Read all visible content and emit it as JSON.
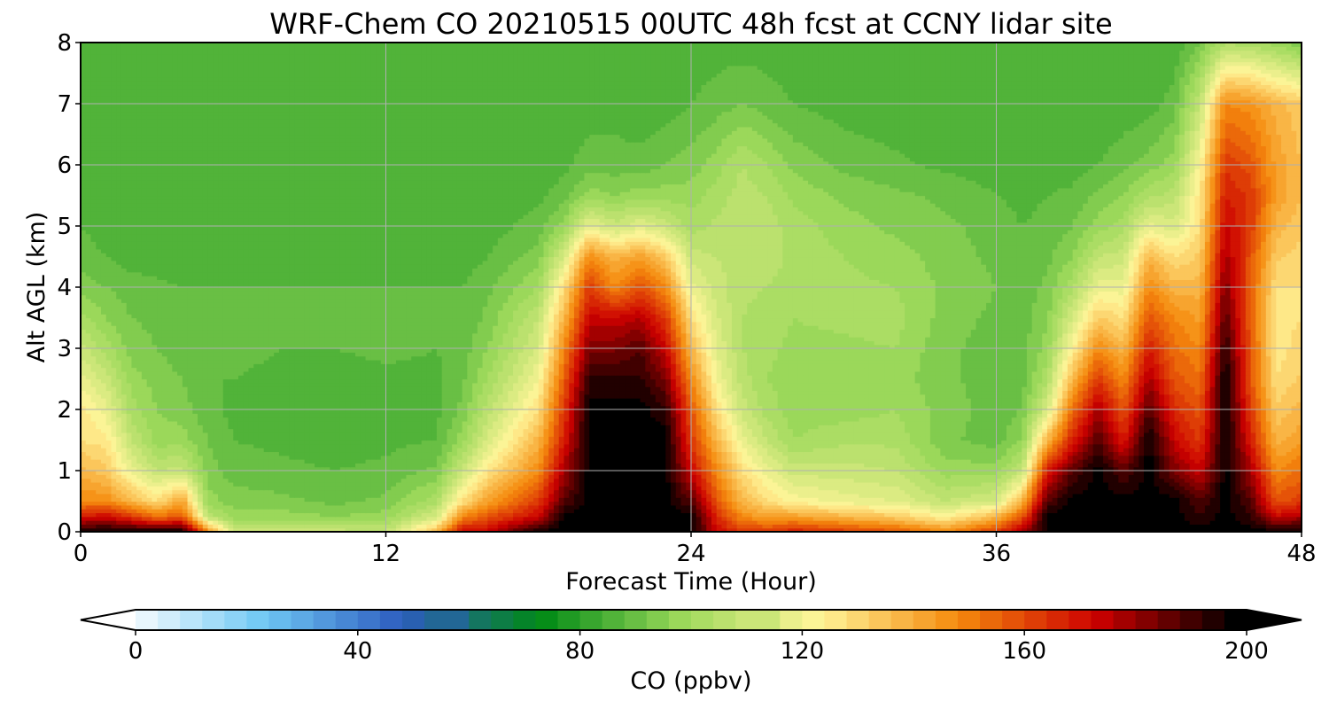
{
  "chart_data": {
    "type": "heatmap",
    "title": "WRF-Chem CO  20210515 00UTC 48h fcst at CCNY lidar site",
    "xlabel": "Forecast Time (Hour)",
    "ylabel": "Alt AGL (km)",
    "xlim": [
      0,
      48
    ],
    "ylim": [
      0,
      8
    ],
    "xticks": [
      "0",
      "12",
      "24",
      "36",
      "48"
    ],
    "yticks": [
      "0",
      "1",
      "2",
      "3",
      "4",
      "5",
      "6",
      "7",
      "8"
    ],
    "grid": true,
    "colorbar": {
      "label": "CO  (ppbv)",
      "range": [
        0,
        200
      ],
      "extend": "both",
      "ticks": [
        "0",
        "40",
        "80",
        "120",
        "160",
        "200"
      ],
      "colors": [
        "#ffffff",
        "#6fc8f4",
        "#2d5cbf",
        "#008a15",
        "#9bd85a",
        "#fff599",
        "#f58a0d",
        "#cc0000",
        "#000000"
      ]
    },
    "x_hours": [
      0,
      1,
      2,
      3,
      4,
      5,
      6,
      8,
      10,
      12,
      14,
      15,
      16,
      18,
      19,
      20,
      21,
      22,
      23,
      24,
      25,
      26,
      27,
      28,
      30,
      32,
      34,
      36,
      37,
      38,
      39,
      40,
      41,
      42,
      43,
      44,
      45,
      46,
      47,
      48
    ],
    "z_km": [
      0,
      0.25,
      0.5,
      1,
      1.5,
      2,
      2.5,
      3,
      3.5,
      4,
      4.5,
      5,
      5.5,
      6,
      7,
      8
    ],
    "co_ppbv": [
      [
        200,
        200,
        200,
        200,
        200,
        150,
        115,
        115,
        112,
        110,
        140,
        175,
        175,
        200,
        200,
        200,
        200,
        200,
        200,
        200,
        175,
        165,
        165,
        170,
        165,
        160,
        150,
        165,
        180,
        200,
        200,
        200,
        200,
        200,
        200,
        200,
        200,
        200,
        200,
        200
      ],
      [
        170,
        175,
        165,
        155,
        160,
        110,
        100,
        100,
        98,
        100,
        115,
        150,
        160,
        175,
        200,
        200,
        200,
        200,
        200,
        200,
        168,
        150,
        145,
        145,
        140,
        135,
        125,
        140,
        160,
        200,
        200,
        200,
        200,
        200,
        200,
        195,
        200,
        195,
        175,
        180
      ],
      [
        150,
        150,
        140,
        130,
        145,
        100,
        96,
        95,
        93,
        95,
        105,
        130,
        145,
        165,
        190,
        200,
        200,
        200,
        200,
        190,
        160,
        140,
        130,
        125,
        120,
        118,
        110,
        115,
        140,
        190,
        200,
        200,
        200,
        200,
        200,
        190,
        200,
        190,
        160,
        165
      ],
      [
        140,
        135,
        120,
        110,
        112,
        96,
        92,
        91,
        90,
        91,
        95,
        112,
        128,
        150,
        180,
        200,
        200,
        200,
        200,
        175,
        150,
        130,
        120,
        112,
        112,
        110,
        100,
        100,
        110,
        170,
        190,
        200,
        190,
        200,
        185,
        175,
        200,
        180,
        150,
        155
      ],
      [
        130,
        128,
        110,
        100,
        100,
        94,
        90,
        89,
        88,
        89,
        90,
        100,
        115,
        140,
        170,
        200,
        200,
        200,
        200,
        165,
        140,
        120,
        110,
        102,
        105,
        105,
        95,
        92,
        98,
        140,
        170,
        190,
        170,
        200,
        175,
        165,
        200,
        170,
        140,
        145
      ],
      [
        128,
        120,
        104,
        98,
        96,
        91,
        89,
        88,
        87,
        88,
        89,
        95,
        108,
        130,
        165,
        200,
        200,
        200,
        195,
        160,
        130,
        112,
        104,
        100,
        100,
        102,
        96,
        92,
        94,
        115,
        155,
        180,
        160,
        190,
        168,
        160,
        200,
        165,
        135,
        140
      ],
      [
        120,
        112,
        100,
        96,
        94,
        90,
        90,
        89,
        88,
        89,
        89,
        93,
        102,
        122,
        158,
        195,
        195,
        195,
        185,
        150,
        122,
        108,
        102,
        100,
        100,
        100,
        95,
        92,
        92,
        105,
        140,
        165,
        150,
        180,
        160,
        155,
        200,
        160,
        130,
        135
      ],
      [
        112,
        104,
        96,
        94,
        92,
        91,
        91,
        90,
        90,
        91,
        90,
        92,
        98,
        115,
        150,
        185,
        185,
        190,
        175,
        140,
        118,
        106,
        103,
        101,
        101,
        102,
        95,
        92,
        92,
        100,
        125,
        150,
        140,
        170,
        155,
        150,
        195,
        160,
        128,
        132
      ],
      [
        104,
        98,
        94,
        93,
        92,
        92,
        92,
        91,
        91,
        91,
        90,
        91,
        95,
        110,
        140,
        175,
        175,
        178,
        165,
        130,
        115,
        106,
        104,
        102,
        103,
        104,
        96,
        93,
        92,
        97,
        115,
        135,
        130,
        160,
        150,
        145,
        190,
        158,
        128,
        130
      ],
      [
        96,
        94,
        92,
        91,
        90,
        90,
        90,
        90,
        90,
        90,
        90,
        90,
        93,
        102,
        130,
        165,
        150,
        160,
        150,
        120,
        112,
        107,
        106,
        104,
        103,
        102,
        97,
        94,
        92,
        95,
        105,
        120,
        120,
        150,
        140,
        140,
        185,
        158,
        130,
        130
      ],
      [
        92,
        90,
        88,
        88,
        87,
        87,
        87,
        87,
        87,
        87,
        88,
        88,
        90,
        96,
        115,
        150,
        140,
        145,
        135,
        112,
        110,
        108,
        108,
        105,
        102,
        100,
        96,
        93,
        91,
        93,
        98,
        110,
        112,
        140,
        130,
        135,
        180,
        160,
        135,
        132
      ],
      [
        90,
        88,
        87,
        87,
        86,
        86,
        86,
        86,
        86,
        86,
        86,
        87,
        88,
        92,
        100,
        120,
        112,
        118,
        112,
        104,
        107,
        109,
        108,
        104,
        100,
        97,
        95,
        92,
        90,
        91,
        94,
        100,
        104,
        120,
        115,
        130,
        175,
        165,
        140,
        135
      ],
      [
        89,
        87,
        86,
        86,
        86,
        86,
        86,
        86,
        86,
        86,
        86,
        86,
        87,
        89,
        92,
        100,
        98,
        100,
        100,
        100,
        104,
        108,
        106,
        101,
        97,
        95,
        93,
        90,
        89,
        90,
        91,
        95,
        98,
        105,
        108,
        128,
        170,
        165,
        145,
        138
      ],
      [
        88,
        87,
        86,
        86,
        86,
        86,
        86,
        86,
        86,
        86,
        86,
        86,
        86,
        87,
        89,
        92,
        92,
        92,
        94,
        96,
        100,
        106,
        102,
        97,
        93,
        91,
        89,
        88,
        88,
        88,
        88,
        90,
        93,
        96,
        100,
        124,
        165,
        160,
        145,
        138
      ],
      [
        87,
        87,
        87,
        86,
        86,
        86,
        86,
        86,
        86,
        86,
        86,
        86,
        86,
        86,
        87,
        88,
        88,
        86,
        88,
        90,
        92,
        94,
        92,
        90,
        88,
        87,
        86,
        86,
        86,
        86,
        86,
        86,
        87,
        88,
        92,
        110,
        150,
        148,
        140,
        135
      ],
      [
        90,
        90,
        89,
        89,
        89,
        88,
        88,
        88,
        88,
        88,
        88,
        88,
        88,
        88,
        88,
        88,
        87,
        86,
        86,
        87,
        88,
        88,
        88,
        87,
        86,
        86,
        86,
        86,
        86,
        86,
        86,
        86,
        86,
        86,
        87,
        94,
        105,
        104,
        100,
        95
      ]
    ]
  }
}
